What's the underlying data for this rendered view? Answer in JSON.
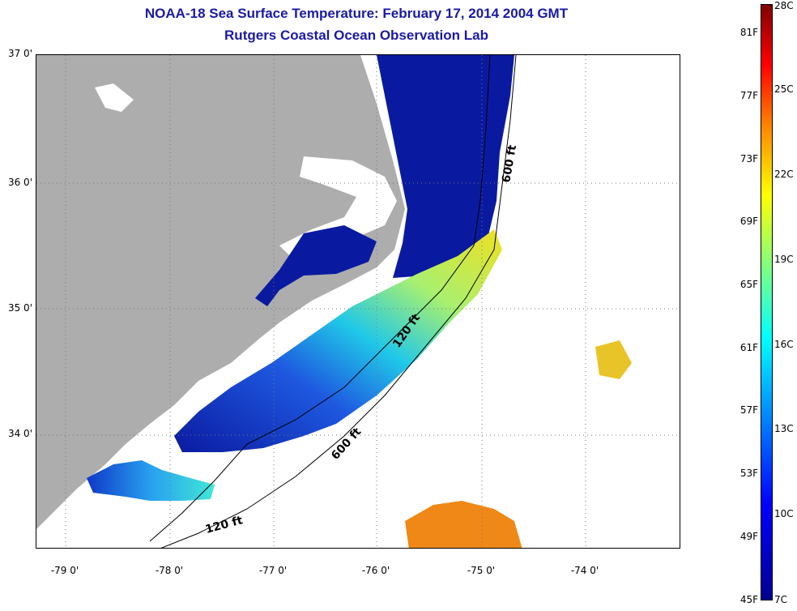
{
  "header": {
    "title_line1": "NOAA-18 Sea Surface Temperature:  February 17, 2014 2004 GMT",
    "title_line2": "Rutgers Coastal Ocean Observation Lab"
  },
  "map": {
    "lat_labels": [
      "37 0'",
      "36 0'",
      "35 0'",
      "34 0'"
    ],
    "lon_labels": [
      "-79 0'",
      "-78 0'",
      "-77 0'",
      "-76 0'",
      "-75 0'",
      "-74 0'"
    ],
    "isobath_labels": {
      "deep_north": "600 ft",
      "deep_south": "600 ft",
      "shelf_mid": "120 ft",
      "shelf_south": "120 ft"
    },
    "colors": {
      "land": "#adadad",
      "cloud_no_data": "#ffffff",
      "cold_water": "#0a1aa0"
    }
  },
  "colorbar": {
    "fahrenheit_labels": [
      "81F",
      "77F",
      "73F",
      "69F",
      "65F",
      "61F",
      "57F",
      "53F",
      "49F",
      "45F"
    ],
    "celsius_labels": [
      "28C",
      "25C",
      "22C",
      "19C",
      "16C",
      "13C",
      "10C",
      "7C"
    ]
  }
}
